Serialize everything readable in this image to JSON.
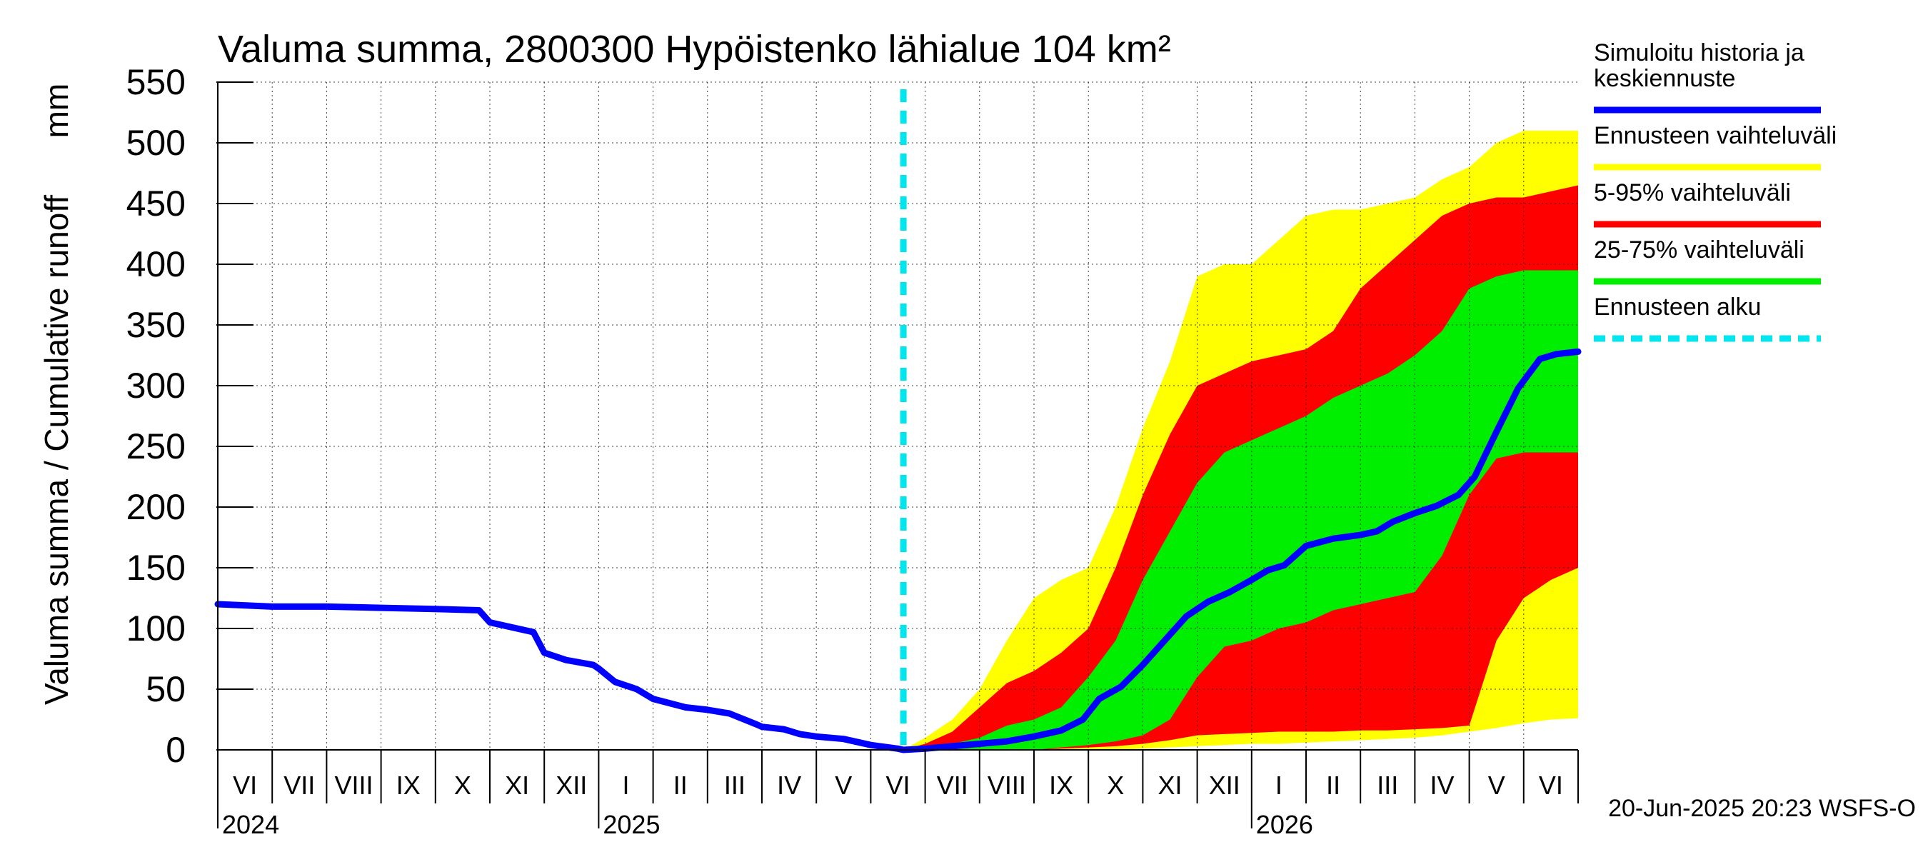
{
  "chart_data": {
    "type": "area",
    "title": "Valuma summa, 2800300 Hypöistenko lähialue 104 km²",
    "ylabel": "Valuma summa / Cumulative runoff",
    "yunit": "mm",
    "ylim": [
      0,
      550
    ],
    "yticks": [
      0,
      50,
      100,
      150,
      200,
      250,
      300,
      350,
      400,
      450,
      500,
      550
    ],
    "x_start_month": "2024-06",
    "x_end_month": "2026-07",
    "month_labels": [
      "VI",
      "VII",
      "VIII",
      "IX",
      "X",
      "XI",
      "XII",
      "I",
      "II",
      "III",
      "IV",
      "V",
      "VI",
      "VII",
      "VIII",
      "IX",
      "X",
      "XI",
      "XII",
      "I",
      "II",
      "III",
      "IV",
      "V",
      "VI"
    ],
    "year_labels": [
      {
        "label": "2024",
        "month_index": 0
      },
      {
        "label": "2025",
        "month_index": 7
      },
      {
        "label": "2026",
        "month_index": 19
      }
    ],
    "forecast_start_month": 12.6,
    "legend": [
      {
        "label": "Simuloitu historia ja keskiennuste",
        "color": "#0000ff",
        "style": "solid"
      },
      {
        "label": "Ennusteen vaihteluväli",
        "color": "#ffff00",
        "style": "solid"
      },
      {
        "label": "5-95% vaihteluväli",
        "color": "#ff0000",
        "style": "solid"
      },
      {
        "label": "25-75% vaihteluväli",
        "color": "#00ee00",
        "style": "solid"
      },
      {
        "label": "Ennusteen alku",
        "color": "#00e5ee",
        "style": "dashed"
      }
    ],
    "footer": "20-Jun-2025 20:23 WSFS-O",
    "series": [
      {
        "name": "Simuloitu historia ja keskiennuste",
        "color": "#0000ff",
        "x": [
          0,
          1,
          2,
          3,
          4,
          4.8,
          5,
          5.3,
          5.8,
          6,
          6.4,
          6.9,
          7,
          7.3,
          7.7,
          8,
          8.6,
          9,
          9.4,
          9.9,
          10,
          10.4,
          10.7,
          11,
          11.5,
          12,
          12.5,
          12.6,
          13,
          13.5,
          14,
          14.5,
          15,
          15.5,
          15.9,
          16.2,
          16.6,
          17,
          17.4,
          17.8,
          18.2,
          18.6,
          19,
          19.3,
          19.6,
          20,
          20.5,
          21,
          21.3,
          21.6,
          22,
          22.4,
          22.8,
          23.1,
          23.5,
          23.9,
          24.3,
          24.6,
          25
        ],
        "y": [
          120,
          118,
          118,
          117,
          116,
          115,
          105,
          102,
          97,
          80,
          74,
          70,
          67,
          56,
          50,
          42,
          35,
          33,
          30,
          21,
          19,
          17,
          13,
          11,
          9,
          4,
          1,
          0,
          1,
          3,
          5,
          7,
          11,
          16,
          25,
          42,
          52,
          70,
          90,
          110,
          122,
          130,
          140,
          148,
          152,
          168,
          174,
          177,
          180,
          188,
          195,
          201,
          210,
          225,
          262,
          298,
          322,
          326,
          328
        ]
      },
      {
        "name": "Ennusteen vaihteluväli",
        "color": "#ffff00",
        "x": [
          12.6,
          13,
          13.5,
          14,
          14.5,
          15,
          15.5,
          16,
          16.5,
          17,
          17.5,
          18,
          18.5,
          19,
          19.5,
          20,
          20.5,
          21,
          21.5,
          22,
          22.5,
          23,
          23.5,
          24,
          24.5,
          25
        ],
        "upper": [
          0,
          10,
          25,
          50,
          90,
          125,
          140,
          150,
          200,
          265,
          320,
          390,
          400,
          400,
          420,
          440,
          445,
          445,
          450,
          455,
          470,
          480,
          500,
          510,
          510,
          510
        ],
        "lower": [
          0,
          0,
          0,
          0,
          0,
          0,
          0,
          0,
          0,
          1,
          2,
          3,
          4,
          5,
          5,
          6,
          7,
          8,
          9,
          10,
          12,
          15,
          18,
          22,
          25,
          26
        ]
      },
      {
        "name": "5-95% vaihteluväli",
        "color": "#ff0000",
        "x": [
          12.6,
          13,
          13.5,
          14,
          14.5,
          15,
          15.5,
          16,
          16.5,
          17,
          17.5,
          18,
          18.5,
          19,
          19.5,
          20,
          20.5,
          21,
          21.5,
          22,
          22.5,
          23,
          23.5,
          24,
          24.5,
          25
        ],
        "upper": [
          0,
          5,
          15,
          35,
          55,
          65,
          80,
          100,
          150,
          210,
          260,
          300,
          310,
          320,
          325,
          330,
          345,
          380,
          400,
          420,
          440,
          450,
          455,
          455,
          460,
          465
        ],
        "lower": [
          0,
          0,
          0,
          0,
          0,
          0,
          1,
          2,
          3,
          5,
          8,
          12,
          13,
          14,
          15,
          15,
          15,
          16,
          16,
          17,
          18,
          20,
          90,
          125,
          140,
          150
        ]
      },
      {
        "name": "25-75% vaihteluväli",
        "color": "#00ee00",
        "x": [
          12.6,
          13,
          13.5,
          14,
          14.5,
          15,
          15.5,
          16,
          16.5,
          17,
          17.5,
          18,
          18.5,
          19,
          19.5,
          20,
          20.5,
          21,
          21.5,
          22,
          22.5,
          23,
          23.5,
          24,
          24.5,
          25
        ],
        "upper": [
          0,
          2,
          5,
          10,
          20,
          25,
          35,
          60,
          90,
          140,
          180,
          220,
          245,
          255,
          265,
          275,
          290,
          300,
          310,
          325,
          345,
          380,
          390,
          395,
          395,
          395
        ],
        "lower": [
          0,
          0,
          0,
          0,
          0,
          0,
          2,
          4,
          7,
          12,
          25,
          60,
          85,
          90,
          100,
          105,
          115,
          120,
          125,
          130,
          160,
          210,
          240,
          245,
          245,
          245
        ]
      }
    ]
  }
}
